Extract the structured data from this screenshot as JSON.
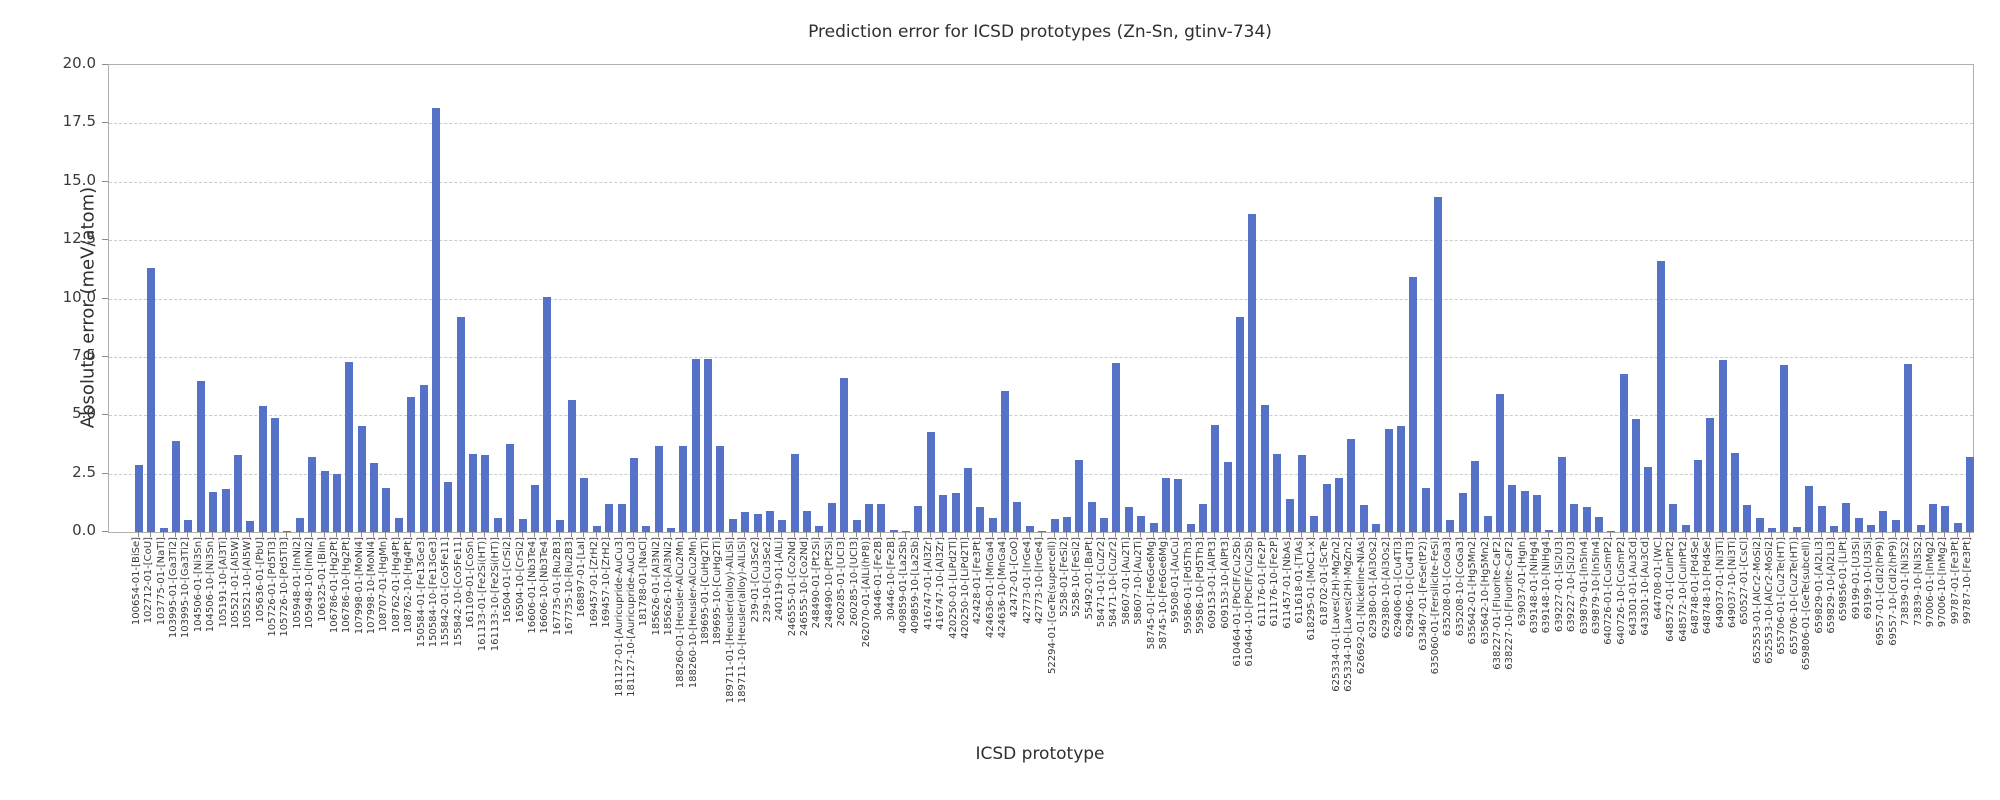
{
  "chart_data": {
    "type": "bar",
    "title": "Prediction error for ICSD prototypes (Zn-Sn, gtinv-734)",
    "xlabel": "ICSD prototype",
    "ylabel": "Absolute error (meV/atom)",
    "ylim": [
      0,
      20
    ],
    "yticks": [
      "0.0",
      "2.5",
      "5.0",
      "7.5",
      "10.0",
      "12.5",
      "15.0",
      "17.5",
      "20.0"
    ],
    "grid": "horizontal-dashed",
    "legend": "none",
    "bar_color": "#5572c8",
    "categories": [
      "100654-01-[BiSe]",
      "102712-01-[CoU]",
      "103775-01-[NaTl]",
      "103995-01-[Ga3Ti2]",
      "103995-10-[Ga3Ti2]",
      "104506-01-[Ni3Sn]",
      "104506-10-[Ni3Sn]",
      "105191-10-[Al3Ti]",
      "105521-01-[Al5W]",
      "105521-10-[Al5W]",
      "105636-01-[PbU]",
      "105726-01-[Pd5Ti3]",
      "105726-10-[Pd5Ti3]",
      "105948-01-[InNi2]",
      "105948-10-[InNi2]",
      "106325-01-[BiIn]",
      "106786-01-[Hg2Pt]",
      "106786-10-[Hg2Pt]",
      "107998-01-[MoNi4]",
      "107998-10-[MoNi4]",
      "108707-01-[HgMn]",
      "108762-01-[Hg4Pt]",
      "108762-10-[Hg4Pt]",
      "150584-01-[Fe13Ge3]",
      "150584-10-[Fe13Ge3]",
      "155842-01-[Co5Fe11]",
      "155842-10-[Co5Fe11]",
      "161109-01-[CoSn]",
      "161133-01-[Fe2Si(HT)]",
      "161133-10-[Fe2Si(HT)]",
      "16504-01-[CrSi2]",
      "16504-10-[CrSi2]",
      "16606-01-[Nb3Te4]",
      "16606-10-[Nb3Te4]",
      "167735-01-[Ru2B3]",
      "167735-10-[Ru2B3]",
      "168897-01-[LaI]",
      "169457-01-[ZrH2]",
      "169457-10-[ZrH2]",
      "181127-01-[Auricupride-AuCu3]",
      "181127-10-[Auricupride-AuCu3]",
      "181788-01-[NaCl]",
      "185626-01-[Al3Ni2]",
      "185626-10-[Al3Ni2]",
      "188260-01-[Heusler-AlCu2Mn]",
      "188260-10-[Heusler-AlCu2Mn]",
      "189695-01-[CuHg2Ti]",
      "189695-10-[CuHg2Ti]",
      "189711-01-[Heusler(alloy)-AlLiSi]",
      "189711-10-[Heusler(alloy)-AlLiSi]",
      "239-01-[Cu3Se2]",
      "239-10-[Cu3Se2]",
      "240119-01-[AlLi]",
      "246555-01-[Co2Nd]",
      "246555-10-[Co2Nd]",
      "248490-01-[Pt2Si]",
      "248490-10-[Pt2Si]",
      "260285-01-[UCl3]",
      "260285-10-[UCl3]",
      "262070-01-[AlLi(hP8)]",
      "30446-01-[Fe2B]",
      "30446-10-[Fe2B]",
      "409859-01-[La2Sb]",
      "409859-10-[La2Sb]",
      "416747-01-[Al3Zr]",
      "416747-10-[Al3Zr]",
      "420250-01-[LiPd2Tl]",
      "420250-10-[LiPd2Tl]",
      "42428-01-[Fe3Pt]",
      "424636-01-[MnGa4]",
      "424636-10-[MnGa4]",
      "42472-01-[CoO]",
      "42773-01-[IrGe4]",
      "42773-10-[IrGe4]",
      "52294-01-[GeTe(supercell)]",
      "5258-01-[FeSi2]",
      "5258-10-[FeSi2]",
      "55492-01-[BaPt]",
      "58471-01-[CuZr2]",
      "58471-10-[CuZr2]",
      "58607-01-[Au2Ti]",
      "58607-10-[Au2Ti]",
      "58745-01-[Fe6Ge6Mg]",
      "58745-10-[Fe6Ge6Mg]",
      "59508-01-[AuCu]",
      "59586-01-[Pd5Th3]",
      "59586-10-[Pd5Th3]",
      "609153-01-[AlPt3]",
      "609153-10-[AlPt3]",
      "610464-01-[PbClF/Cu2Sb]",
      "610464-10-[PbClF/Cu2Sb]",
      "611176-01-[Fe2P]",
      "611176-10-[Fe2P]",
      "611457-01-[NbAs]",
      "611618-01-[TiAs]",
      "618295-01-[MoC1-x]",
      "618702-01-[ScTe]",
      "625334-01-[Laves(2H)-MgZn2]",
      "625334-10-[Laves(2H)-MgZn2]",
      "626692-01-[Nickeline-NiAs]",
      "629380-01-[Al3Os2]",
      "629380-10-[Al3Os2]",
      "629406-01-[Cu4Ti3]",
      "629406-10-[Cu4Ti3]",
      "633467-01-[FeSe(tP2)]",
      "635060-01-[Fersilicite-FeSi]",
      "635208-01-[CoGa3]",
      "635208-10-[CoGa3]",
      "635642-01-[Hg5Mn2]",
      "635642-10-[Hg5Mn2]",
      "638227-01-[Fluorite-CaF2]",
      "638227-10-[Fluorite-CaF2]",
      "639037-01-[HgIn]",
      "639148-01-[NiHg4]",
      "639148-10-[NiHg4]",
      "639227-01-[Si2U3]",
      "639227-10-[Si2U3]",
      "639879-01-[In5In4]",
      "639879-10-[In5In4]",
      "640726-01-[CuSmP2]",
      "640726-10-[CuSmP2]",
      "643301-01-[Au3Cd]",
      "643301-10-[Au3Cd]",
      "644708-01-[WC]",
      "648572-01-[CuInPt2]",
      "648572-10-[CuInPt2]",
      "648748-01-[Pd4Se]",
      "648748-10-[Pd4Se]",
      "649037-01-[Ni3Ti]",
      "649037-10-[Ni3Ti]",
      "650527-01-[CsCl]",
      "652553-01-[AlCr2-MoSi2]",
      "652553-10-[AlCr2-MoSi2]",
      "655706-01-[Cu2Te(HT)]",
      "655706-10-[Cu2Te(HT)]",
      "659806-01-[GeTe(subcell)]",
      "659829-01-[Al2Li3]",
      "659829-10-[Al2Li3]",
      "659856-01-[LiPt]",
      "69199-01-[U3Si]",
      "69199-10-[U3Si]",
      "69557-01-[CdI2(hP9)]",
      "69557-10-[CdI2(hP9)]",
      "73839-01-[Ni3S2]",
      "73839-10-[Ni3S2]",
      "97006-01-[InMg2]",
      "97006-10-[InMg2]",
      "99787-01-[Fe3Pt]",
      "99787-10-[Fe3Pt]"
    ],
    "values": [
      2.85,
      11.3,
      0.15,
      3.9,
      0.5,
      6.45,
      1.7,
      1.85,
      3.3,
      0.45,
      5.4,
      4.9,
      0.05,
      0.6,
      3.2,
      2.6,
      2.5,
      7.3,
      4.55,
      2.95,
      1.9,
      0.6,
      5.8,
      6.3,
      18.15,
      2.15,
      9.2,
      3.35,
      3.3,
      0.6,
      3.75,
      0.55,
      2.0,
      10.05,
      0.5,
      5.65,
      2.3,
      0.25,
      1.2,
      1.2,
      3.15,
      0.25,
      3.7,
      0.15,
      3.7,
      7.4,
      7.4,
      3.7,
      0.55,
      0.85,
      0.75,
      0.9,
      0.5,
      3.35,
      0.9,
      0.25,
      1.25,
      6.6,
      0.5,
      1.2,
      1.2,
      0.1,
      0.05,
      1.1,
      4.3,
      1.6,
      1.65,
      2.75,
      1.05,
      0.6,
      6.05,
      1.3,
      0.25,
      0.05,
      0.55,
      0.65,
      3.1,
      1.3,
      0.6,
      7.25,
      1.05,
      0.7,
      0.4,
      2.3,
      2.25,
      0.35,
      1.2,
      4.6,
      3.0,
      9.2,
      13.6,
      5.45,
      3.35,
      1.4,
      3.3,
      0.7,
      2.05,
      2.3,
      4.0,
      1.15,
      0.35,
      4.4,
      4.55,
      10.9,
      1.9,
      14.35,
      0.5,
      1.65,
      3.05,
      0.7,
      5.9,
      2.0,
      1.75,
      1.6,
      0.1,
      3.2,
      1.2,
      1.05,
      0.65,
      0.05,
      6.75,
      4.85,
      2.8,
      11.6,
      1.2,
      0.3,
      3.1,
      4.9,
      7.35,
      3.4,
      1.15,
      0.6,
      0.15,
      7.15,
      0.2,
      1.95,
      1.1,
      0.25,
      1.25,
      0.6,
      0.3,
      0.9,
      0.5,
      7.2,
      0.3,
      1.2,
      1.1,
      0.4,
      3.2
    ]
  }
}
